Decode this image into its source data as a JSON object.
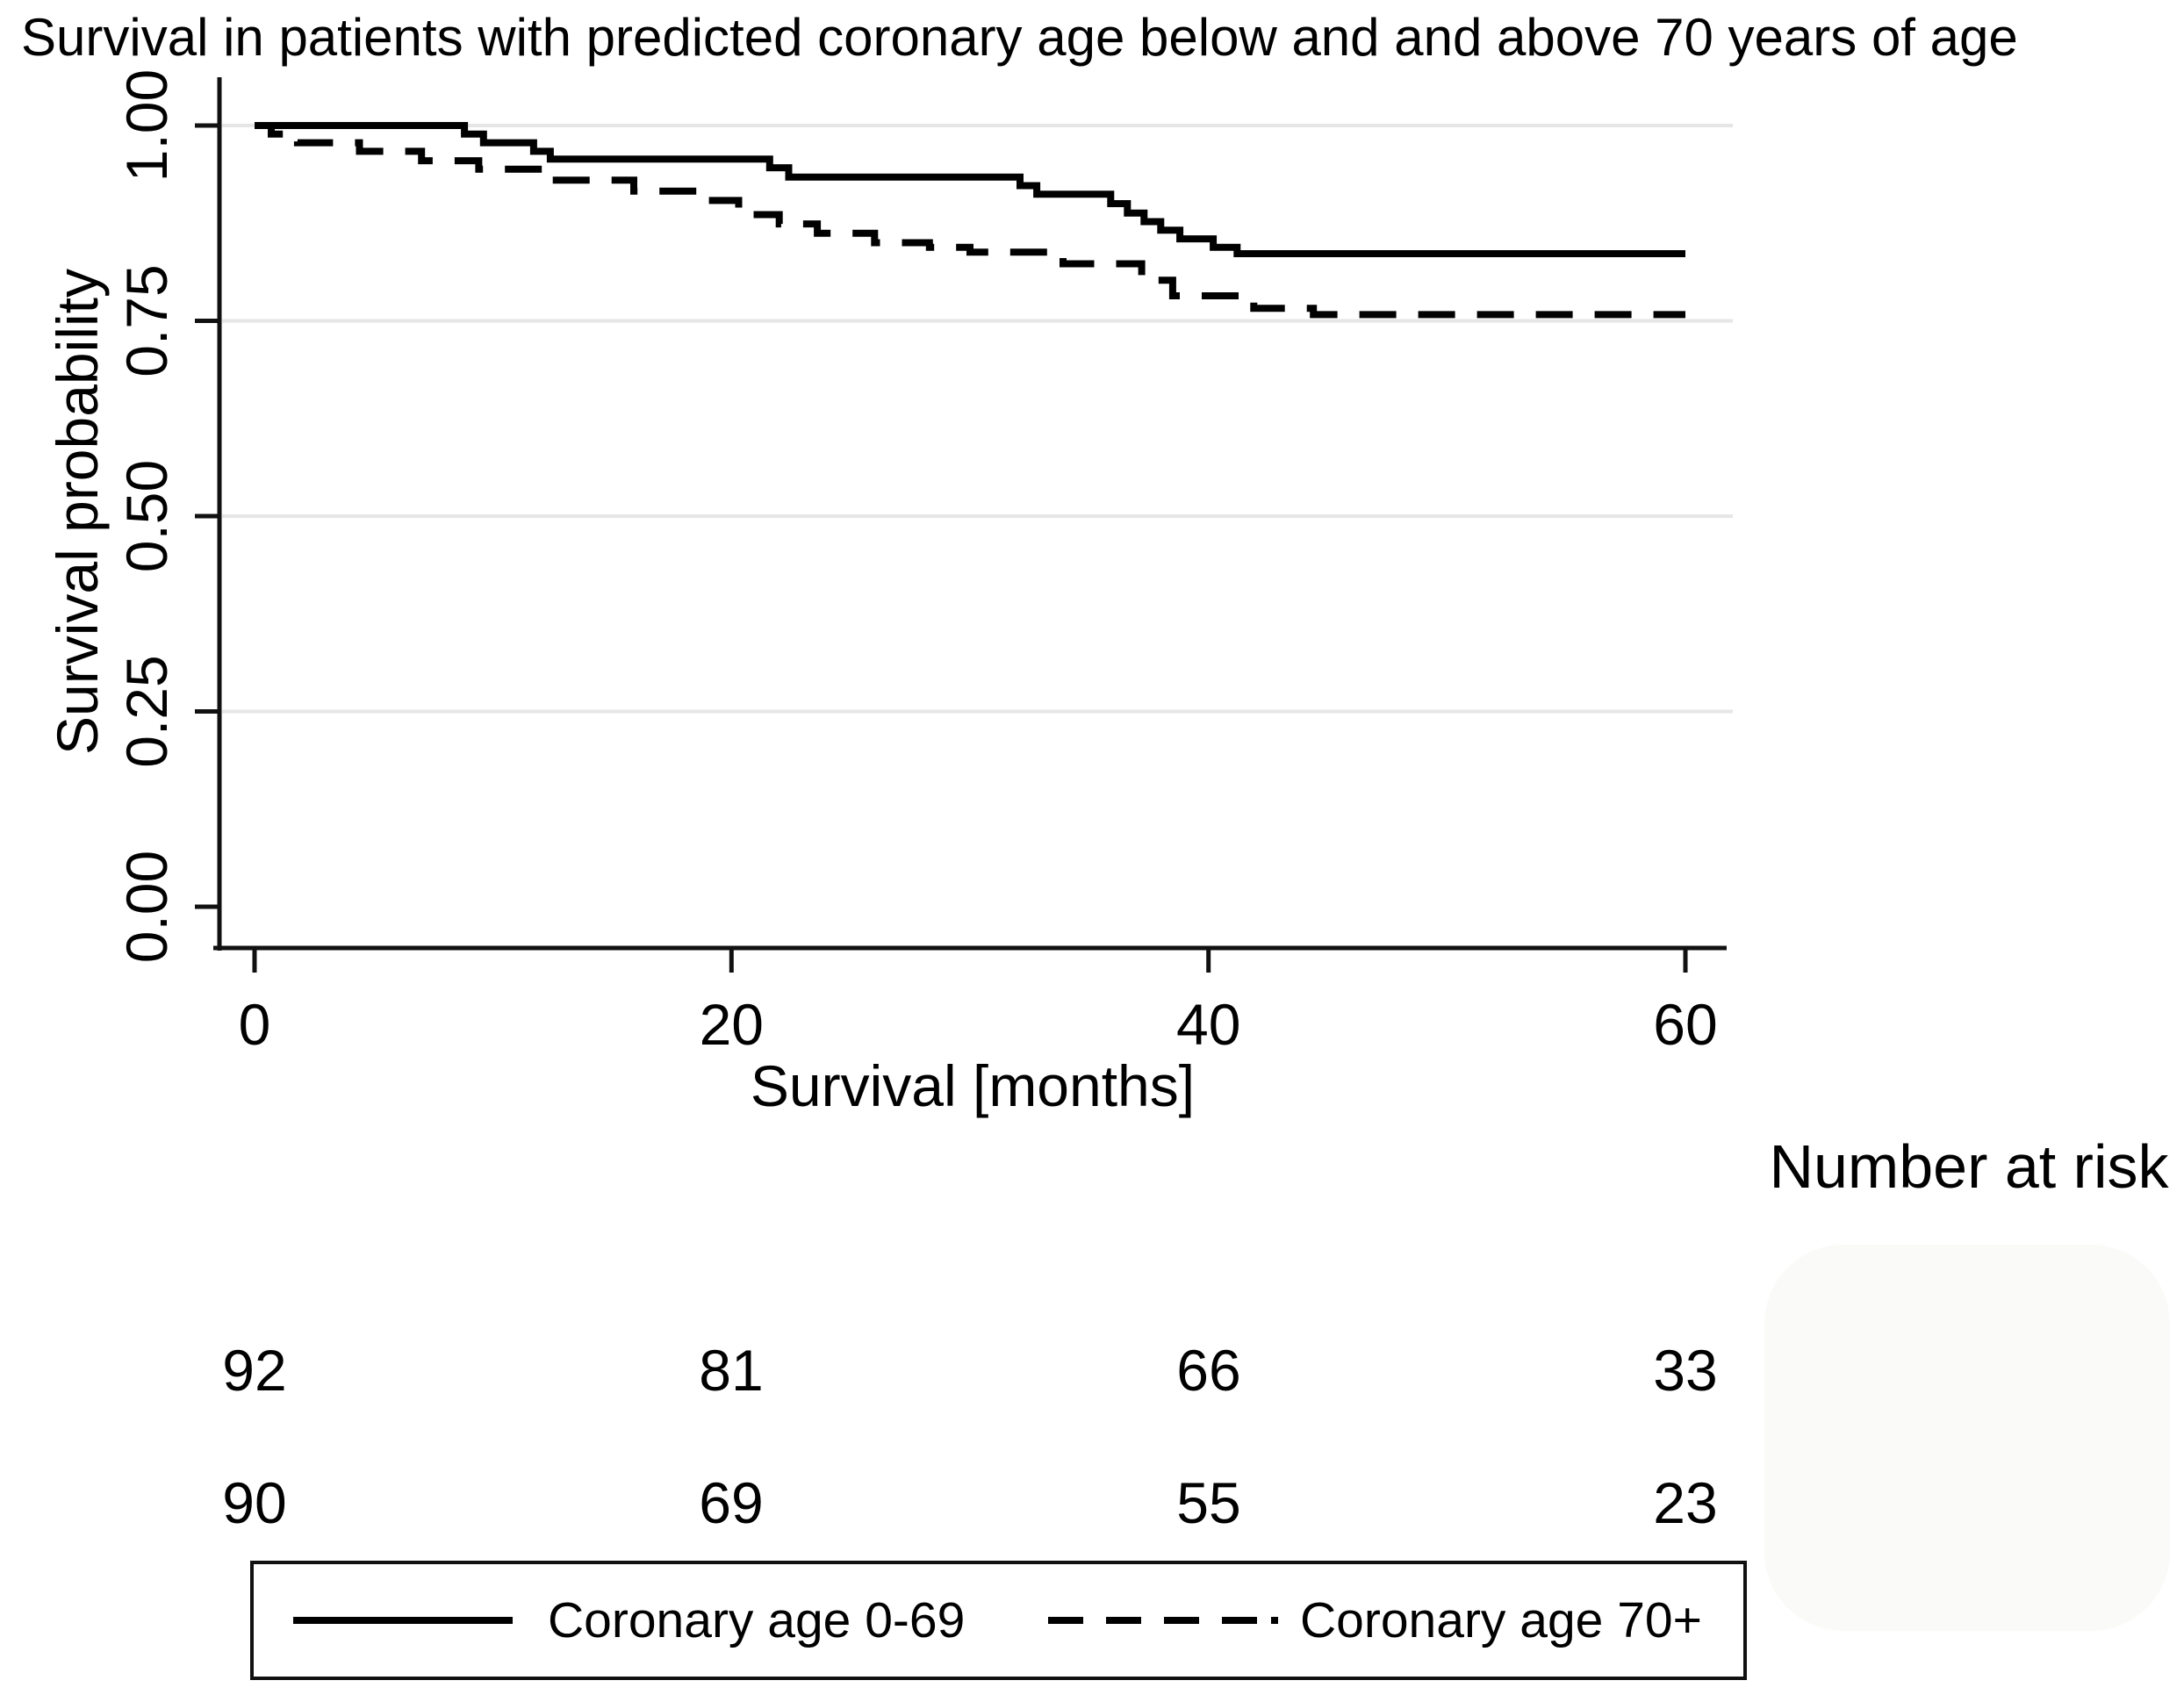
{
  "page": {
    "background": "#ffffff"
  },
  "chart_data": {
    "type": "line",
    "variant": "kaplan_meier_step",
    "title": "Survival in patients with predicted coronary age below and and above 70 years of age",
    "xlabel": "Survival [months]",
    "ylabel": "Survival probability",
    "xlim": [
      0,
      60
    ],
    "ylim": [
      0.0,
      1.0
    ],
    "x_ticks": [
      {
        "value": 0,
        "label": "0"
      },
      {
        "value": 20,
        "label": "20"
      },
      {
        "value": 40,
        "label": "40"
      },
      {
        "value": 60,
        "label": "60"
      }
    ],
    "y_ticks": [
      {
        "value": 1.0,
        "label": "1.00"
      },
      {
        "value": 0.75,
        "label": "0.75"
      },
      {
        "value": 0.5,
        "label": "0.50"
      },
      {
        "value": 0.25,
        "label": "0.25"
      },
      {
        "value": 0.0,
        "label": "0.00"
      }
    ],
    "gridlines_at": [
      1.0,
      0.75,
      0.5,
      0.25
    ],
    "grid_color": "#e6e6e6",
    "axis_color": "#111111",
    "curve_color": "#000000",
    "series": [
      {
        "name": "Coronary age 0-69",
        "line_style": "solid",
        "points": [
          [
            0,
            1.0
          ],
          [
            8.8,
            0.989
          ],
          [
            9.6,
            0.978
          ],
          [
            11.7,
            0.967
          ],
          [
            12.4,
            0.957
          ],
          [
            21.6,
            0.946
          ],
          [
            22.4,
            0.934
          ],
          [
            32.1,
            0.923
          ],
          [
            32.8,
            0.912
          ],
          [
            35.9,
            0.9
          ],
          [
            36.6,
            0.888
          ],
          [
            37.3,
            0.877
          ],
          [
            38.0,
            0.866
          ],
          [
            38.8,
            0.855
          ],
          [
            40.2,
            0.844
          ],
          [
            41.2,
            0.836
          ],
          [
            60,
            0.836
          ]
        ]
      },
      {
        "name": "Coronary age 70+",
        "line_style": "dashed",
        "points": [
          [
            0,
            1.0
          ],
          [
            0.7,
            0.989
          ],
          [
            1.8,
            0.978
          ],
          [
            4.4,
            0.967
          ],
          [
            7.0,
            0.955
          ],
          [
            9.4,
            0.944
          ],
          [
            12.3,
            0.93
          ],
          [
            15.9,
            0.916
          ],
          [
            18.9,
            0.904
          ],
          [
            20.3,
            0.886
          ],
          [
            22.0,
            0.874
          ],
          [
            23.6,
            0.862
          ],
          [
            26.0,
            0.85
          ],
          [
            28.3,
            0.844
          ],
          [
            30.0,
            0.838
          ],
          [
            33.9,
            0.823
          ],
          [
            37.2,
            0.802
          ],
          [
            38.5,
            0.782
          ],
          [
            41.9,
            0.766
          ],
          [
            44.4,
            0.758
          ],
          [
            60,
            0.758
          ]
        ]
      }
    ],
    "legend": {
      "position": "bottom",
      "entries": [
        "Coronary age 0-69",
        "Coronary age 70+"
      ]
    },
    "number_at_risk": {
      "label": "Number at risk",
      "times": [
        0,
        20,
        40,
        60
      ],
      "rows": [
        {
          "series": "Coronary age 0-69",
          "counts": [
            92,
            81,
            66,
            33
          ]
        },
        {
          "series": "Coronary age 70+",
          "counts": [
            90,
            69,
            55,
            23
          ]
        }
      ]
    }
  }
}
